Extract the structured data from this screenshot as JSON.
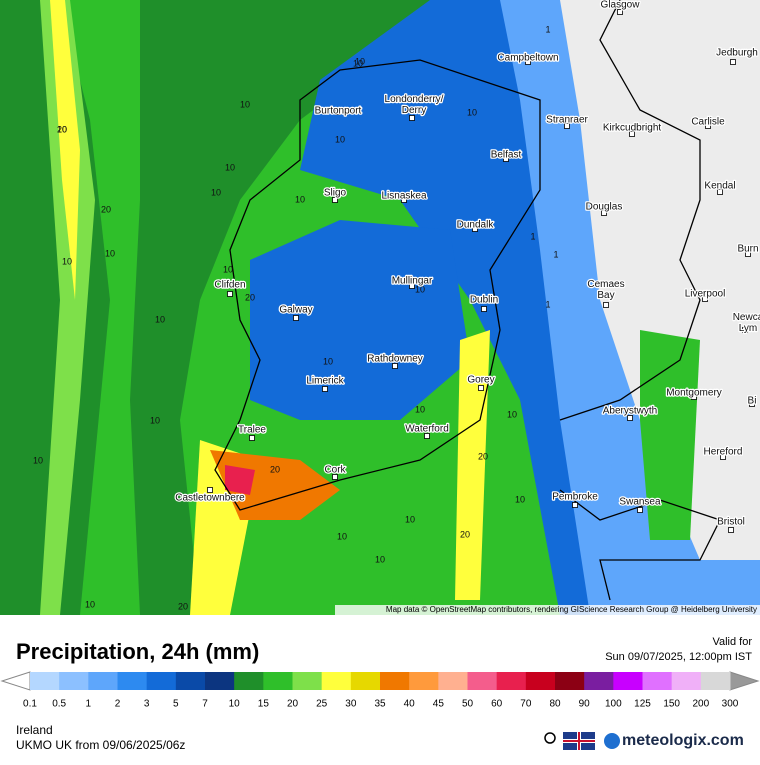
{
  "map": {
    "cities": [
      "Glasgow",
      "Jedburgh",
      "Campbeltown",
      "Londonderry/\nDerry",
      "Burtonport",
      "Stranraer",
      "Kirkcudbright",
      "Carlisle",
      "Belfast",
      "Sligo",
      "Lisnaskea",
      "Kendal",
      "Douglas",
      "Dundalk",
      "Burn",
      "Clifden",
      "Mullingar",
      "Cemaes\nBay",
      "Liverpool",
      "Dublin",
      "Galway",
      "Newca\nLym",
      "Rathdowney",
      "Limerick",
      "Gorey",
      "Montgomery",
      "Aberystwyth",
      "Bi",
      "Tralee",
      "Waterford",
      "Hereford",
      "Cork",
      "Castletownbere",
      "Pembroke",
      "Swansea",
      "Bristol"
    ],
    "contour_labels": [
      "10",
      "20",
      "10",
      "10",
      "10",
      "10",
      "10",
      "10",
      "10",
      "10",
      "10",
      "10",
      "20",
      "10",
      "20",
      "10",
      "10",
      "10",
      "1",
      "1",
      "1",
      "1",
      "20",
      "10",
      "10",
      "10",
      "20",
      "10",
      "10",
      "10",
      "20",
      "10",
      "10",
      "10",
      "20"
    ],
    "attribution": "Map data © OpenStreetMap contributors, rendering GIScience Research Group @ Heidelberg University"
  },
  "header": {
    "title": "Precipitation, 24h (mm)",
    "valid_label": "Valid for",
    "valid_time": "Sun 09/07/2025, 12:00pm IST"
  },
  "legend": {
    "ticks": [
      0.1,
      0.5,
      1,
      2,
      3,
      5,
      7,
      10,
      15,
      20,
      25,
      30,
      35,
      40,
      45,
      50,
      60,
      70,
      80,
      90,
      100,
      125,
      150,
      200,
      300
    ],
    "colors": [
      "#b4d7ff",
      "#8cc0ff",
      "#5ea6fb",
      "#2d8af0",
      "#136bd8",
      "#0a4aa8",
      "#0c3580",
      "#1f8f2a",
      "#2fbf2a",
      "#7ee04a",
      "#ffff3c",
      "#e6d800",
      "#f07800",
      "#ff9a3c",
      "#ffb090",
      "#f45d8c",
      "#e8204e",
      "#c8001e",
      "#8c0014",
      "#7a1ea0",
      "#c800ff",
      "#e070ff",
      "#f0b0f8",
      "#d8d8d8"
    ]
  },
  "footer": {
    "region": "Ireland",
    "model": "UKMO UK from  09/06/2025/06z",
    "brand": "meteologix.com"
  }
}
